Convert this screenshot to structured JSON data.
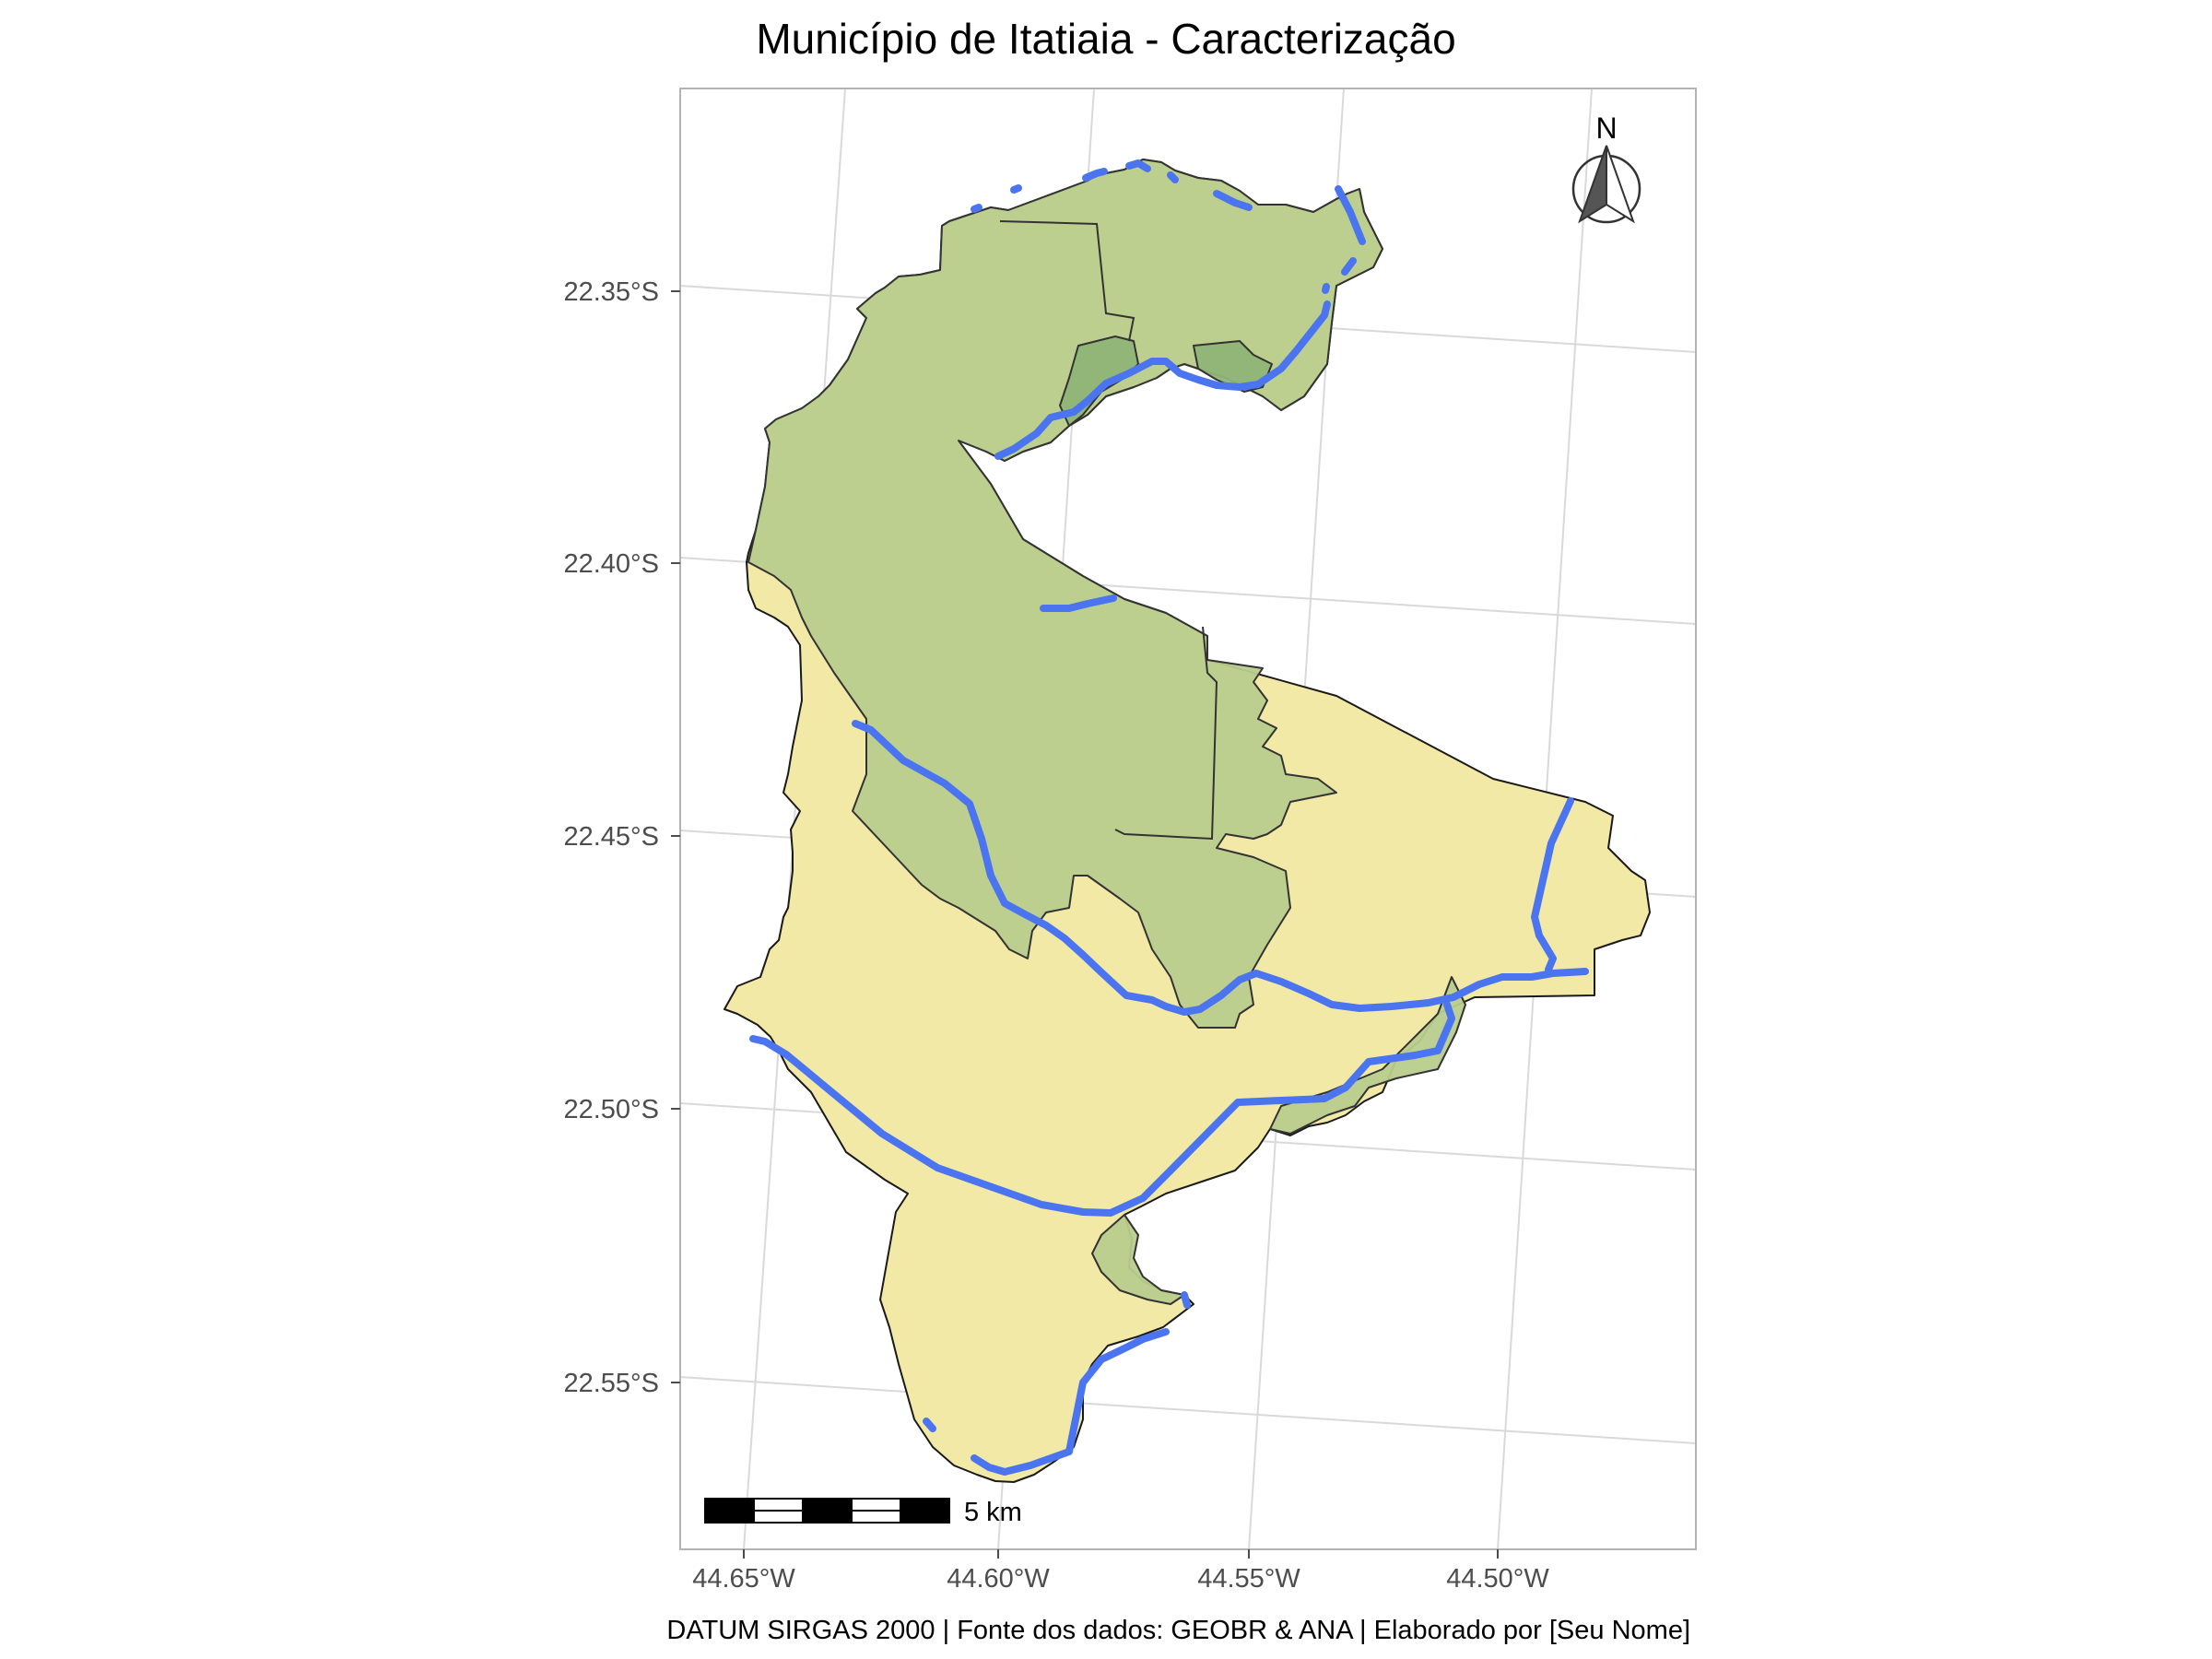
{
  "map": {
    "title": "Município de Itatiaia - Caracterização",
    "caption": "DATUM SIRGAS 2000 | Fonte dos dados: GEOBR & ANA | Elaborado por [Seu Nome]",
    "y_axis_labels": [
      "22.35°S",
      "22.40°S",
      "22.45°S",
      "22.50°S",
      "22.55°S"
    ],
    "x_axis_labels": [
      "44.65°W",
      "44.60°W",
      "44.55°W",
      "44.50°W"
    ],
    "scale_bar_label": "5 km",
    "north_arrow_label": "N",
    "layers": {
      "municipality": "municipality-boundary",
      "protected_areas": "protected-area",
      "rivers": "river"
    },
    "colors": {
      "municipality_fill": "#f2e9a6",
      "protected_area_fill": "#b8cd8d",
      "protected_area_overlap_fill": "#8fb477",
      "river": "#4a74f0",
      "outline": "#1a1a1a",
      "grid": "#d9d9d9",
      "panel_border": "#b3b3b3"
    }
  }
}
